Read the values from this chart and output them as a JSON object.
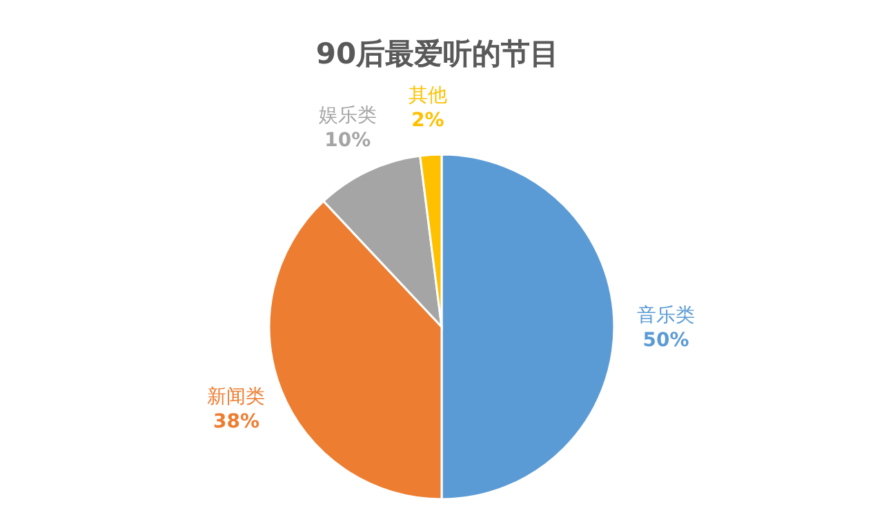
{
  "chart_data": {
    "type": "pie",
    "title": "90后最爱听的节目",
    "categories": [
      "音乐类",
      "新闻类",
      "娱乐类",
      "其他"
    ],
    "values": [
      50,
      38,
      10,
      2
    ],
    "colors": [
      "#5b9bd5",
      "#ed7d31",
      "#a5a5a5",
      "#ffc000"
    ],
    "value_labels": [
      "50%",
      "38%",
      "10%",
      "2%"
    ]
  }
}
